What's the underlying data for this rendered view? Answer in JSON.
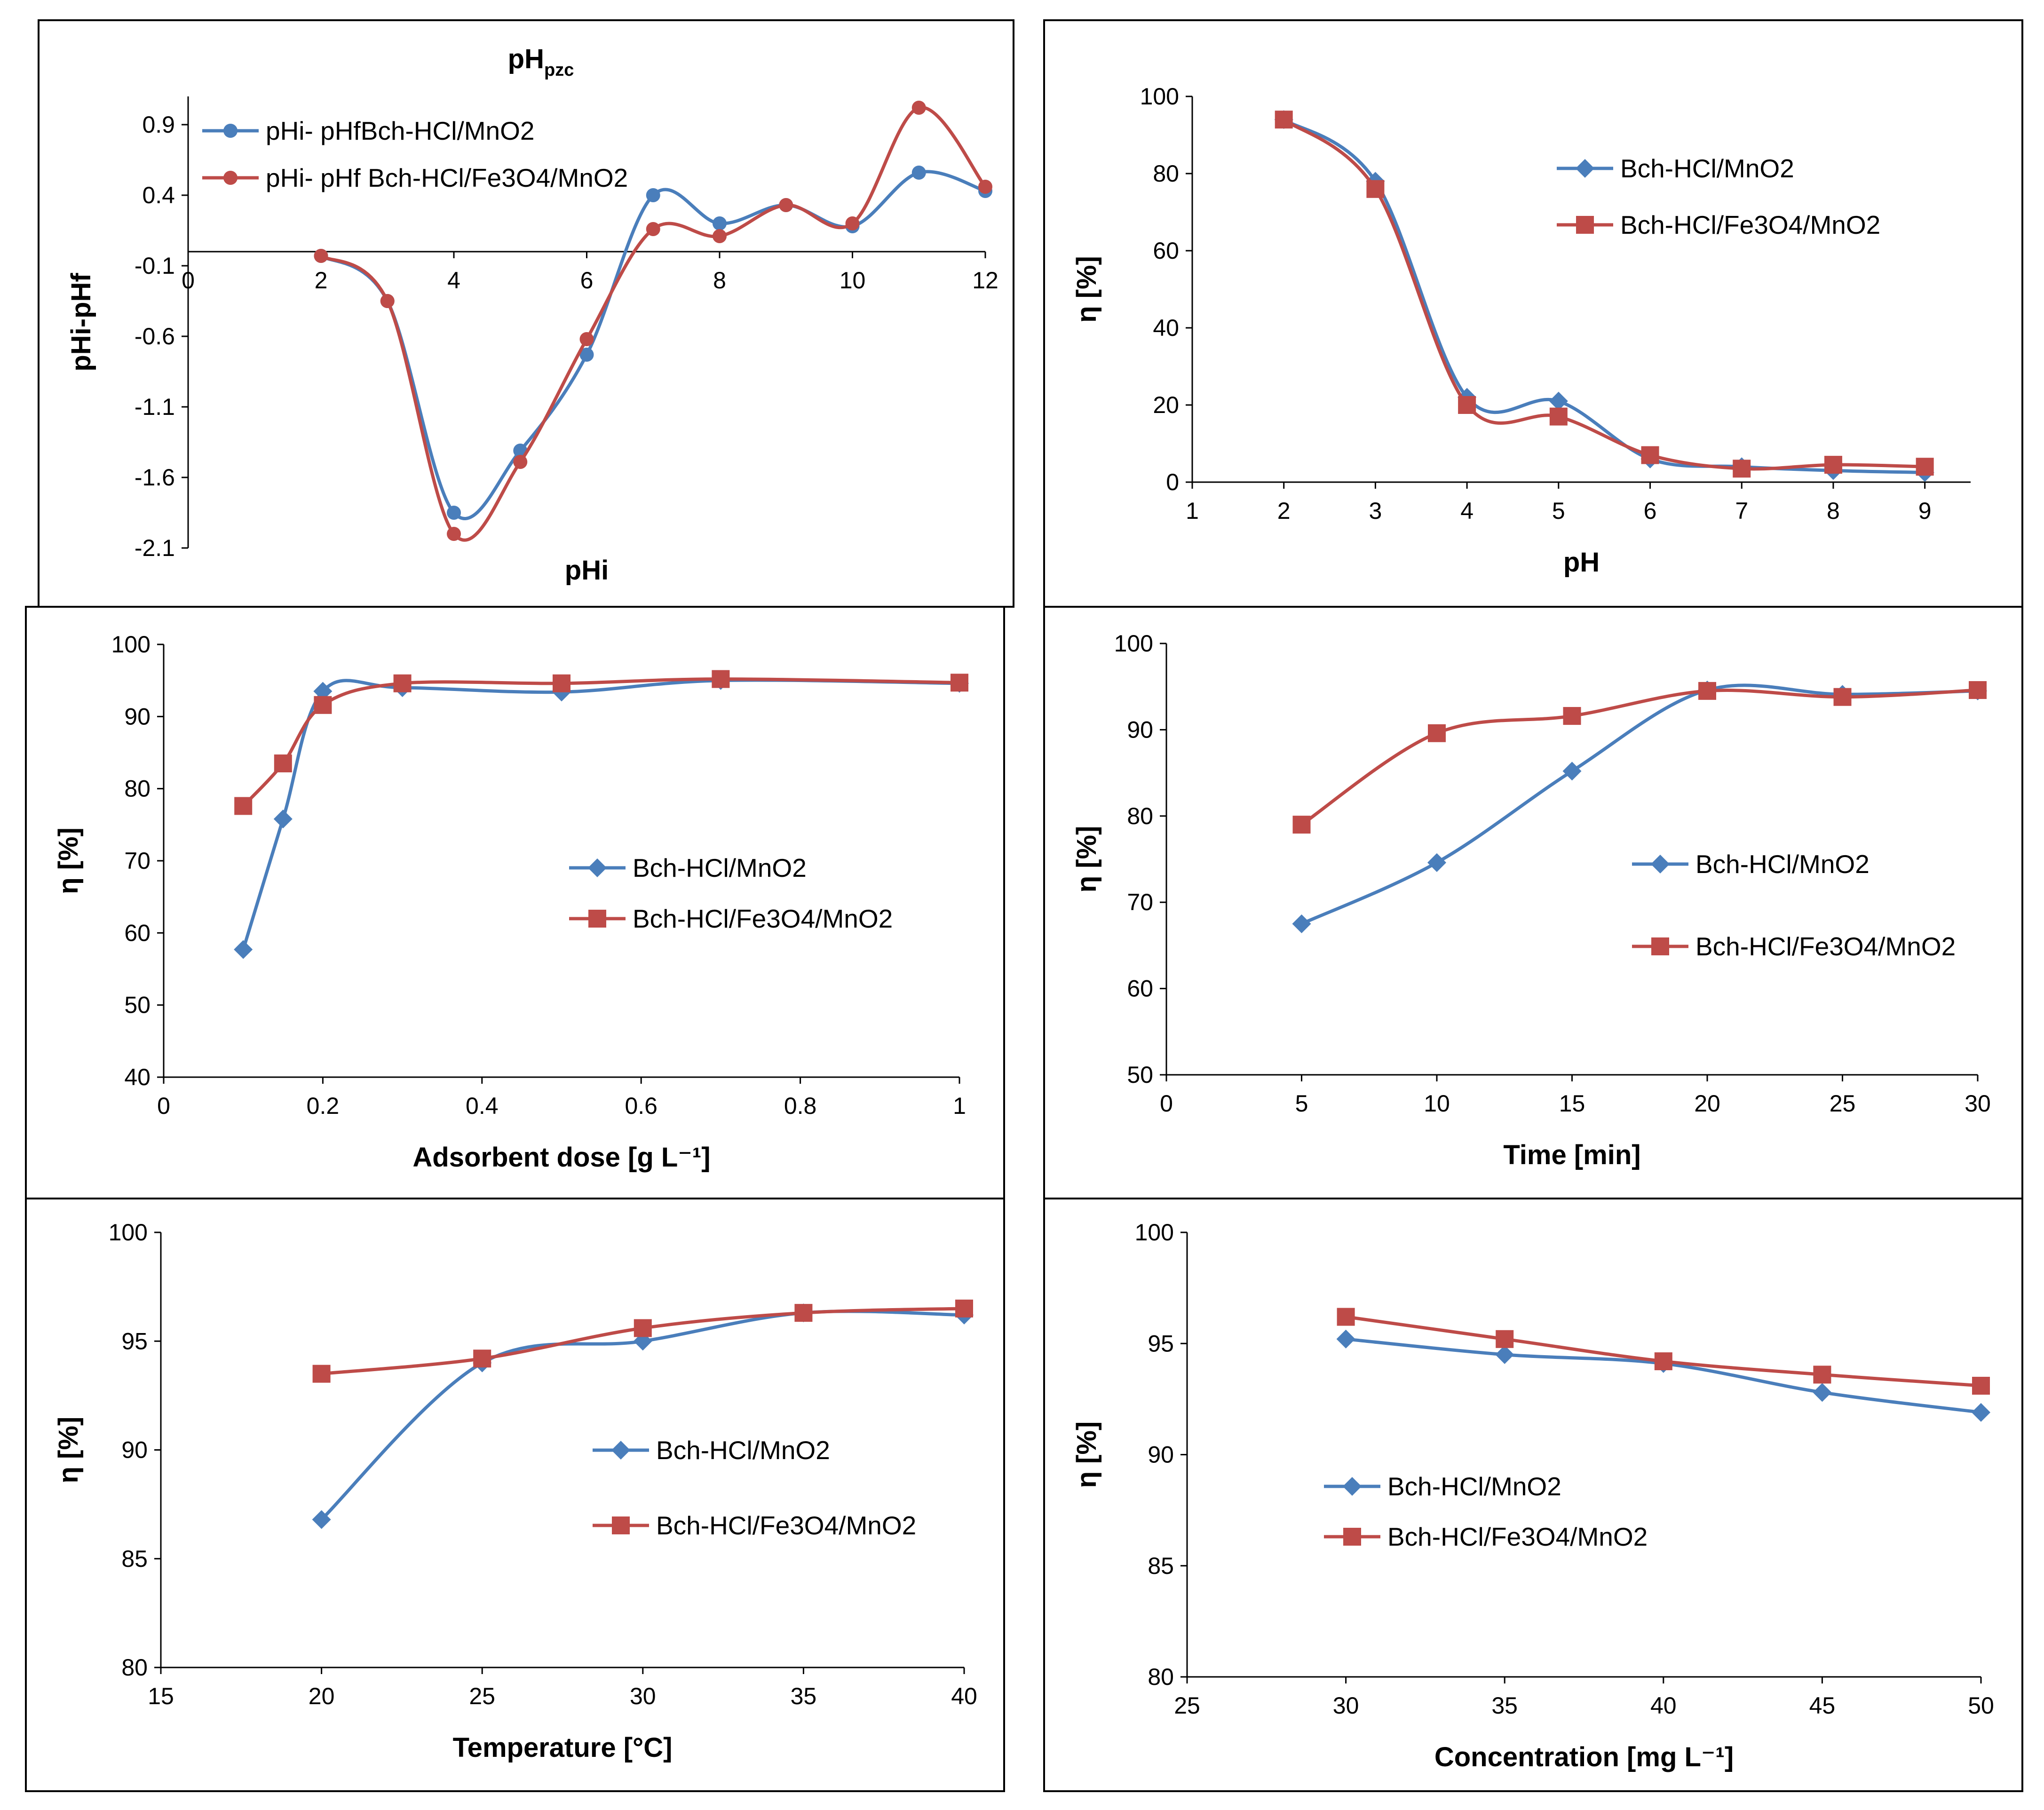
{
  "figure": {
    "panels": [
      {
        "id": "pzc",
        "label": "pH_pzc panel"
      },
      {
        "id": "ph",
        "label": "pH effect panel"
      },
      {
        "id": "dose",
        "label": "adsorbent dose panel"
      },
      {
        "id": "time",
        "label": "contact time panel"
      },
      {
        "id": "temp",
        "label": "temperature panel"
      },
      {
        "id": "conc",
        "label": "concentration panel"
      }
    ]
  },
  "chart_data": [
    {
      "id": "pzc",
      "type": "line",
      "title_main": "pH",
      "title_sub": "pzc",
      "xlabel": "pHi",
      "ylabel": "pHi-pHf",
      "xlim": [
        0,
        12
      ],
      "ylim": [
        -2.1,
        1.1
      ],
      "xticks": [
        0,
        2,
        4,
        6,
        8,
        10,
        12
      ],
      "yticks": [
        0.9,
        0.4,
        -0.1,
        -0.6,
        -1.1,
        -1.6,
        -2.1
      ],
      "x_axis_at": 0,
      "marker": "circle",
      "series": [
        {
          "name": "pHi- pHfBch-HCl/MnO2",
          "color": "#4a7ebb",
          "x": [
            2,
            3,
            4,
            5,
            6,
            7,
            8,
            9,
            10,
            11,
            12
          ],
          "values": [
            -0.03,
            -0.35,
            -1.85,
            -1.41,
            -0.73,
            0.4,
            0.2,
            0.33,
            0.18,
            0.56,
            0.43
          ]
        },
        {
          "name": "pHi- pHf Bch-HCl/Fe3O4/MnO2",
          "color": "#be4b48",
          "x": [
            2,
            3,
            4,
            5,
            6,
            7,
            8,
            9,
            10,
            11,
            12
          ],
          "values": [
            -0.03,
            -0.35,
            -2.0,
            -1.49,
            -0.62,
            0.16,
            0.11,
            0.33,
            0.2,
            1.02,
            0.46
          ]
        }
      ]
    },
    {
      "id": "ph",
      "type": "line",
      "xlabel": "pH",
      "ylabel": "η [%]",
      "xlim": [
        1,
        9.5
      ],
      "ylim": [
        0,
        100
      ],
      "xticks": [
        1,
        2,
        3,
        4,
        5,
        6,
        7,
        8,
        9
      ],
      "yticks": [
        0,
        20,
        40,
        60,
        80,
        100
      ],
      "series": [
        {
          "name": "Bch-HCl/MnO2",
          "color": "#4a7ebb",
          "marker": "diamond",
          "x": [
            2,
            3,
            4,
            5,
            6,
            7,
            8,
            9
          ],
          "values": [
            94,
            78,
            22,
            21,
            6,
            4,
            3,
            2.5
          ]
        },
        {
          "name": "Bch-HCl/Fe3O4/MnO2",
          "color": "#be4b48",
          "marker": "square",
          "x": [
            2,
            3,
            4,
            5,
            6,
            7,
            8,
            9
          ],
          "values": [
            94,
            76,
            20,
            17,
            7,
            3.5,
            4.5,
            4
          ]
        }
      ]
    },
    {
      "id": "dose",
      "type": "line",
      "xlabel": "Adsorbent dose [g L⁻¹]",
      "ylabel": "η [%]",
      "xlim": [
        0,
        1
      ],
      "ylim": [
        40,
        100
      ],
      "xticks": [
        0,
        0.2,
        0.4,
        0.6,
        0.8,
        1
      ],
      "yticks": [
        40,
        50,
        60,
        70,
        80,
        90,
        100
      ],
      "series": [
        {
          "name": "Bch-HCl/MnO2",
          "color": "#4a7ebb",
          "marker": "diamond",
          "x": [
            0.1,
            0.15,
            0.2,
            0.3,
            0.5,
            0.7,
            1.0
          ],
          "values": [
            57.7,
            75.8,
            93.5,
            94,
            93.4,
            95,
            94.6
          ]
        },
        {
          "name": "Bch-HCl/Fe3O4/MnO2",
          "color": "#be4b48",
          "marker": "square",
          "x": [
            0.1,
            0.15,
            0.2,
            0.3,
            0.5,
            0.7,
            1.0
          ],
          "values": [
            77.6,
            83.5,
            91.6,
            94.6,
            94.6,
            95.2,
            94.7
          ]
        }
      ]
    },
    {
      "id": "time",
      "type": "line",
      "xlabel": "Time [min]",
      "ylabel": "η [%]",
      "xlim": [
        0,
        30
      ],
      "ylim": [
        50,
        100
      ],
      "xticks": [
        0,
        5,
        10,
        15,
        20,
        25,
        30
      ],
      "yticks": [
        50,
        60,
        70,
        80,
        90,
        100
      ],
      "series": [
        {
          "name": "Bch-HCl/MnO2",
          "color": "#4a7ebb",
          "marker": "diamond",
          "x": [
            5,
            10,
            15,
            20,
            25,
            30
          ],
          "values": [
            67.5,
            74.6,
            85.2,
            94.6,
            94.1,
            94.5
          ]
        },
        {
          "name": "Bch-HCl/Fe3O4/MnO2",
          "color": "#be4b48",
          "marker": "square",
          "x": [
            5,
            10,
            15,
            20,
            25,
            30
          ],
          "values": [
            79,
            89.6,
            91.6,
            94.5,
            93.8,
            94.6
          ]
        }
      ]
    },
    {
      "id": "temp",
      "type": "line",
      "xlabel": "Temperature [°C]",
      "ylabel": "η [%]",
      "xlim": [
        15,
        40
      ],
      "ylim": [
        80,
        100
      ],
      "xticks": [
        15,
        20,
        25,
        30,
        35,
        40
      ],
      "yticks": [
        80,
        85,
        90,
        95,
        100
      ],
      "series": [
        {
          "name": "Bch-HCl/MnO2",
          "color": "#4a7ebb",
          "marker": "diamond",
          "x": [
            20,
            25,
            30,
            35,
            40
          ],
          "values": [
            86.8,
            94,
            95,
            96.3,
            96.2
          ]
        },
        {
          "name": "Bch-HCl/Fe3O4/MnO2",
          "color": "#be4b48",
          "marker": "square",
          "x": [
            20,
            25,
            30,
            35,
            40
          ],
          "values": [
            93.5,
            94.2,
            95.6,
            96.3,
            96.5
          ]
        }
      ]
    },
    {
      "id": "conc",
      "type": "line",
      "xlabel": "Concentration [mg L⁻¹]",
      "ylabel": "η [%]",
      "xlim": [
        25,
        50
      ],
      "ylim": [
        80,
        100
      ],
      "xticks": [
        25,
        30,
        35,
        40,
        45,
        50
      ],
      "yticks": [
        80,
        85,
        90,
        95,
        100
      ],
      "series": [
        {
          "name": "Bch-HCl/MnO2",
          "color": "#4a7ebb",
          "marker": "diamond",
          "x": [
            30,
            35,
            40,
            45,
            50
          ],
          "values": [
            95.2,
            94.5,
            94.1,
            92.8,
            91.9
          ]
        },
        {
          "name": "Bch-HCl/Fe3O4/MnO2",
          "color": "#be4b48",
          "marker": "square",
          "x": [
            30,
            35,
            40,
            45,
            50
          ],
          "values": [
            96.2,
            95.2,
            94.2,
            93.6,
            93.1
          ]
        }
      ]
    }
  ]
}
